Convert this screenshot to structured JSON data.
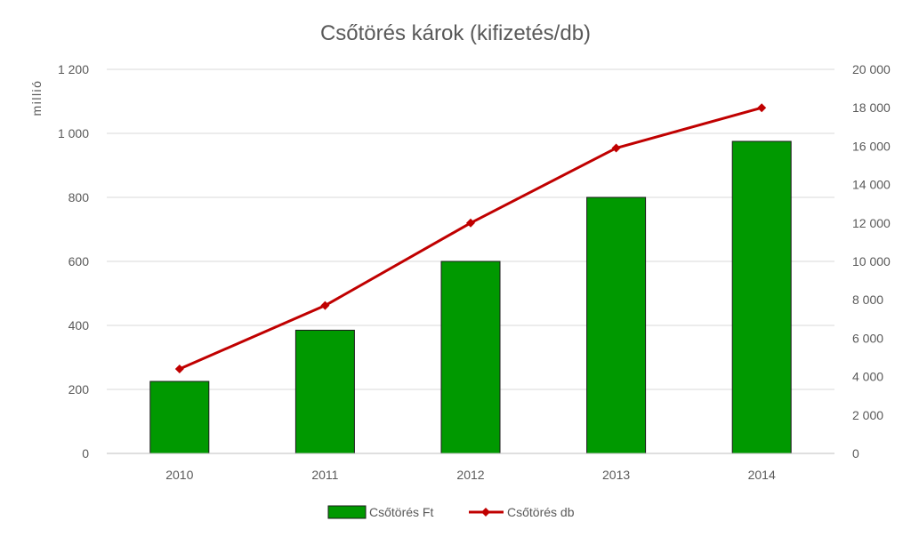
{
  "chart_data": {
    "type": "bar",
    "title": "Csőtörés károk (kifizetés/db)",
    "ylabel": "millió",
    "y2label": "",
    "xlabel": "",
    "categories": [
      "2010",
      "2011",
      "2012",
      "2013",
      "2014"
    ],
    "ylim": [
      0,
      1200
    ],
    "y_ticks": [
      0,
      200,
      400,
      600,
      800,
      1000,
      1200
    ],
    "y_tick_labels": [
      "0",
      "200",
      "400",
      "600",
      "800",
      "1 000",
      "1 200"
    ],
    "y2lim": [
      0,
      20000
    ],
    "y2_ticks": [
      0,
      2000,
      4000,
      6000,
      8000,
      10000,
      12000,
      14000,
      16000,
      18000,
      20000
    ],
    "y2_tick_labels": [
      "0",
      "2 000",
      "4 000",
      "6 000",
      "8 000",
      "10 000",
      "12 000",
      "14 000",
      "16 000",
      "18 000",
      "20 000"
    ],
    "grid": true,
    "legend_position": "bottom",
    "series": [
      {
        "name": "Csőtörés Ft",
        "type": "bar",
        "axis": "left",
        "color": "#009900",
        "values": [
          225,
          385,
          600,
          800,
          975
        ]
      },
      {
        "name": "Csőtörés db",
        "type": "line",
        "axis": "right",
        "color": "#C00000",
        "values": [
          4400,
          7700,
          12000,
          15900,
          18000
        ]
      }
    ]
  }
}
